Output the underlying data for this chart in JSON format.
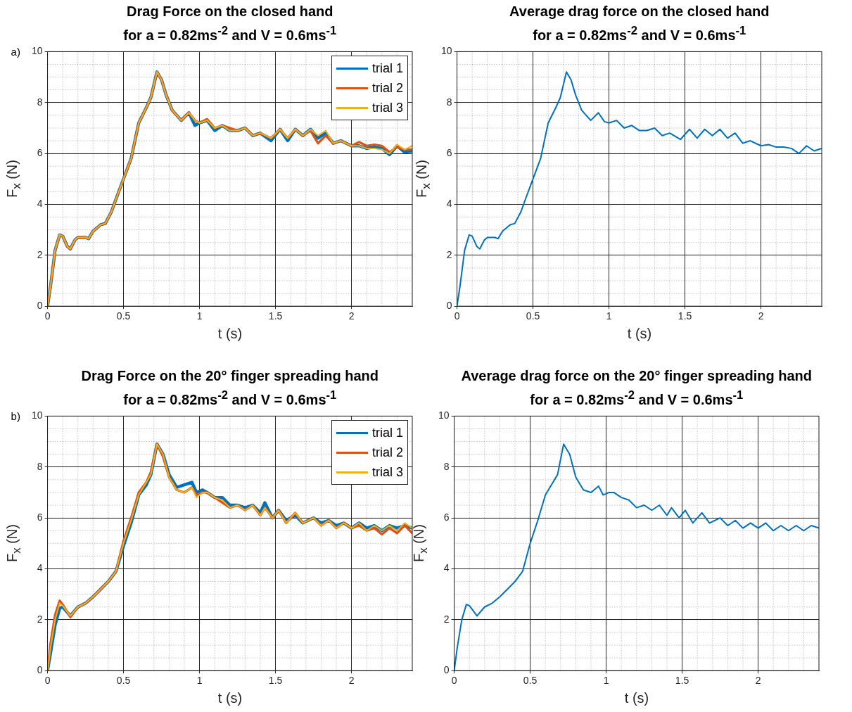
{
  "chart_data": [
    {
      "type": "line",
      "title": "Drag Force on the closed hand",
      "subtitle": "for a = 0.82ms$^{-2}$ and V = 0.6ms$^{-1}$",
      "xlabel": "t (s)",
      "ylabel": "F$_{x}$ (N)",
      "annotations": [
        "a)"
      ],
      "x": [
        0,
        0.02,
        0.05,
        0.08,
        0.1,
        0.13,
        0.15,
        0.18,
        0.2,
        0.25,
        0.27,
        0.3,
        0.35,
        0.38,
        0.42,
        0.45,
        0.5,
        0.55,
        0.6,
        0.65,
        0.68,
        0.72,
        0.75,
        0.78,
        0.82,
        0.85,
        0.88,
        0.93,
        0.97,
        1,
        1.05,
        1.1,
        1.15,
        1.2,
        1.25,
        1.3,
        1.35,
        1.4,
        1.47,
        1.53,
        1.58,
        1.63,
        1.68,
        1.73,
        1.78,
        1.83,
        1.88,
        1.93,
        2,
        2.05,
        2.1,
        2.15,
        2.2,
        2.25,
        2.3,
        2.35,
        2.4
      ],
      "series": [
        {
          "name": "trial 1",
          "color": "#0072bd",
          "values": [
            0,
            0.8,
            2.2,
            2.8,
            2.75,
            2.35,
            2.25,
            2.6,
            2.7,
            2.7,
            2.65,
            2.95,
            3.2,
            3.25,
            3.7,
            4.2,
            5.0,
            5.8,
            7.2,
            7.8,
            8.2,
            9.2,
            8.9,
            8.3,
            7.7,
            7.5,
            7.3,
            7.6,
            7.1,
            7.2,
            7.3,
            6.9,
            7.1,
            6.9,
            6.9,
            7.0,
            6.7,
            6.8,
            6.5,
            6.95,
            6.5,
            6.95,
            6.7,
            6.95,
            6.6,
            6.8,
            6.4,
            6.5,
            6.3,
            6.3,
            6.2,
            6.25,
            6.2,
            5.95,
            6.3,
            6.05,
            6.1
          ]
        },
        {
          "name": "trial 2",
          "color": "#d95319",
          "values": [
            0,
            0.8,
            2.2,
            2.8,
            2.75,
            2.35,
            2.25,
            2.6,
            2.7,
            2.7,
            2.65,
            2.95,
            3.2,
            3.25,
            3.7,
            4.2,
            5.0,
            5.8,
            7.2,
            7.8,
            8.2,
            9.2,
            8.9,
            8.3,
            7.7,
            7.5,
            7.3,
            7.6,
            7.3,
            7.2,
            7.35,
            7.0,
            7.1,
            7.0,
            6.9,
            7.0,
            6.7,
            6.8,
            6.6,
            6.95,
            6.6,
            6.95,
            6.7,
            6.9,
            6.4,
            6.7,
            6.4,
            6.5,
            6.3,
            6.45,
            6.3,
            6.35,
            6.3,
            6.05,
            6.25,
            6.15,
            6.15
          ]
        },
        {
          "name": "trial 3",
          "color": "#edb120",
          "values": [
            0,
            0.8,
            2.2,
            2.8,
            2.75,
            2.35,
            2.25,
            2.6,
            2.7,
            2.7,
            2.65,
            2.95,
            3.2,
            3.25,
            3.7,
            4.2,
            5.0,
            5.8,
            7.2,
            7.8,
            8.2,
            9.2,
            8.9,
            8.3,
            7.7,
            7.5,
            7.3,
            7.6,
            7.3,
            7.2,
            7.3,
            7.0,
            7.1,
            6.9,
            6.9,
            7.0,
            6.7,
            6.8,
            6.6,
            6.95,
            6.6,
            6.95,
            6.7,
            6.95,
            6.7,
            6.9,
            6.4,
            6.5,
            6.3,
            6.3,
            6.2,
            6.2,
            6.15,
            6.0,
            6.35,
            6.15,
            6.3
          ]
        }
      ],
      "xlim": [
        0,
        2.4
      ],
      "ylim": [
        0,
        10
      ],
      "xticks": [
        0,
        0.5,
        1,
        1.5,
        2
      ],
      "yticks": [
        0,
        2,
        4,
        6,
        8,
        10
      ],
      "grid": true,
      "legend": "top right",
      "marker": "none"
    },
    {
      "type": "line",
      "title": "Average drag force on the closed hand",
      "subtitle": "for a = 0.82ms$^{-2}$ and V = 0.6ms$^{-1}$",
      "xlabel": "t (s)",
      "ylabel": "F$_{x}$ (N)",
      "x": [
        0,
        0.02,
        0.05,
        0.08,
        0.1,
        0.13,
        0.15,
        0.18,
        0.2,
        0.25,
        0.27,
        0.3,
        0.35,
        0.38,
        0.42,
        0.45,
        0.5,
        0.55,
        0.6,
        0.65,
        0.68,
        0.72,
        0.75,
        0.78,
        0.82,
        0.85,
        0.88,
        0.93,
        0.97,
        1,
        1.05,
        1.1,
        1.15,
        1.2,
        1.25,
        1.3,
        1.35,
        1.4,
        1.47,
        1.53,
        1.58,
        1.63,
        1.68,
        1.73,
        1.78,
        1.83,
        1.88,
        1.93,
        2,
        2.05,
        2.1,
        2.15,
        2.2,
        2.25,
        2.3,
        2.35,
        2.4
      ],
      "series": [
        {
          "color": "#0072bd",
          "values": [
            0,
            0.8,
            2.2,
            2.8,
            2.75,
            2.35,
            2.25,
            2.6,
            2.7,
            2.7,
            2.65,
            2.95,
            3.2,
            3.25,
            3.7,
            4.2,
            5.0,
            5.8,
            7.2,
            7.8,
            8.2,
            9.2,
            8.9,
            8.3,
            7.7,
            7.5,
            7.3,
            7.6,
            7.25,
            7.2,
            7.3,
            7.0,
            7.1,
            6.9,
            6.9,
            7.0,
            6.7,
            6.8,
            6.55,
            6.95,
            6.6,
            6.95,
            6.7,
            6.95,
            6.6,
            6.8,
            6.4,
            6.5,
            6.3,
            6.35,
            6.25,
            6.25,
            6.2,
            6.0,
            6.3,
            6.1,
            6.2
          ]
        }
      ],
      "xlim": [
        0,
        2.4
      ],
      "ylim": [
        0,
        10
      ],
      "xticks": [
        0,
        0.5,
        1,
        1.5,
        2
      ],
      "yticks": [
        0,
        2,
        4,
        6,
        8,
        10
      ],
      "grid": true,
      "marker": "none"
    },
    {
      "type": "line",
      "title": "Drag Force on the 20° finger spreading hand",
      "subtitle": "for a = 0.82ms$^{-2}$ and V = 0.6ms$^{-1}$",
      "xlabel": "t (s)",
      "ylabel": "F$_{x}$ (N)",
      "annotations": [
        "b)"
      ],
      "x": [
        0,
        0.02,
        0.05,
        0.08,
        0.1,
        0.15,
        0.2,
        0.25,
        0.3,
        0.35,
        0.4,
        0.45,
        0.5,
        0.55,
        0.6,
        0.65,
        0.68,
        0.72,
        0.76,
        0.8,
        0.85,
        0.9,
        0.95,
        0.98,
        1.02,
        1.05,
        1.1,
        1.15,
        1.2,
        1.25,
        1.3,
        1.35,
        1.4,
        1.43,
        1.48,
        1.52,
        1.57,
        1.63,
        1.68,
        1.75,
        1.8,
        1.85,
        1.9,
        1.95,
        2,
        2.05,
        2.1,
        2.15,
        2.2,
        2.25,
        2.3,
        2.35,
        2.4
      ],
      "series": [
        {
          "name": "trial 1",
          "color": "#0072bd",
          "values": [
            0,
            0.7,
            1.8,
            2.45,
            2.5,
            2.15,
            2.5,
            2.65,
            2.9,
            3.2,
            3.5,
            3.9,
            4.9,
            5.8,
            6.9,
            7.3,
            7.7,
            8.9,
            8.5,
            7.7,
            7.2,
            7.3,
            7.4,
            7.0,
            7.1,
            7.0,
            6.8,
            6.8,
            6.5,
            6.5,
            6.4,
            6.5,
            6.2,
            6.6,
            6.0,
            6.3,
            5.9,
            6.1,
            5.8,
            6.0,
            5.8,
            5.9,
            5.7,
            5.8,
            5.6,
            5.8,
            5.6,
            5.7,
            5.5,
            5.7,
            5.6,
            5.7,
            5.6
          ]
        },
        {
          "name": "trial 2",
          "color": "#d95319",
          "values": [
            0,
            1.1,
            2.2,
            2.75,
            2.6,
            2.1,
            2.5,
            2.65,
            2.9,
            3.2,
            3.5,
            3.9,
            5.1,
            6.0,
            7.0,
            7.4,
            7.8,
            8.9,
            8.4,
            7.6,
            7.1,
            7.0,
            7.2,
            6.9,
            7.0,
            7.0,
            6.8,
            6.6,
            6.4,
            6.5,
            6.3,
            6.5,
            6.1,
            6.4,
            6.0,
            6.3,
            5.8,
            6.2,
            5.8,
            6.0,
            5.7,
            5.9,
            5.6,
            5.8,
            5.6,
            5.7,
            5.5,
            5.6,
            5.35,
            5.6,
            5.4,
            5.7,
            5.4
          ]
        },
        {
          "name": "trial 3",
          "color": "#edb120",
          "values": [
            0,
            0.9,
            2.0,
            2.65,
            2.55,
            2.15,
            2.5,
            2.65,
            2.9,
            3.2,
            3.5,
            3.9,
            5.0,
            5.9,
            6.9,
            7.4,
            7.7,
            8.9,
            8.5,
            7.6,
            7.1,
            7.0,
            7.2,
            6.8,
            7.0,
            7.0,
            6.8,
            6.7,
            6.4,
            6.5,
            6.3,
            6.5,
            6.1,
            6.4,
            6.0,
            6.3,
            5.8,
            6.2,
            5.8,
            6.0,
            5.7,
            5.9,
            5.6,
            5.8,
            5.6,
            5.8,
            5.5,
            5.7,
            5.5,
            5.7,
            5.5,
            5.8,
            5.6
          ]
        }
      ],
      "xlim": [
        0,
        2.4
      ],
      "ylim": [
        0,
        10
      ],
      "xticks": [
        0,
        0.5,
        1,
        1.5,
        2
      ],
      "yticks": [
        0,
        2,
        4,
        6,
        8,
        10
      ],
      "grid": true,
      "legend": "top right",
      "marker": "none"
    },
    {
      "type": "line",
      "title": "Average drag force on the 20° finger spreading hand",
      "subtitle": "for a = 0.82ms$^{-2}$ and V = 0.6ms$^{-1}$",
      "xlabel": "t (s)",
      "ylabel": "F$_{x}$ (N)",
      "x": [
        0,
        0.02,
        0.05,
        0.08,
        0.1,
        0.15,
        0.2,
        0.25,
        0.3,
        0.35,
        0.4,
        0.45,
        0.5,
        0.55,
        0.6,
        0.65,
        0.68,
        0.72,
        0.76,
        0.8,
        0.85,
        0.9,
        0.95,
        0.98,
        1.02,
        1.05,
        1.1,
        1.15,
        1.2,
        1.25,
        1.3,
        1.35,
        1.4,
        1.43,
        1.48,
        1.52,
        1.57,
        1.63,
        1.68,
        1.75,
        1.8,
        1.85,
        1.9,
        1.95,
        2,
        2.05,
        2.1,
        2.15,
        2.2,
        2.25,
        2.3,
        2.35,
        2.4
      ],
      "series": [
        {
          "color": "#0072bd",
          "values": [
            0,
            0.9,
            2.0,
            2.6,
            2.55,
            2.15,
            2.5,
            2.65,
            2.9,
            3.2,
            3.5,
            3.9,
            5.0,
            5.9,
            6.9,
            7.4,
            7.7,
            8.9,
            8.5,
            7.6,
            7.1,
            7.0,
            7.25,
            6.9,
            7.0,
            7.0,
            6.8,
            6.7,
            6.4,
            6.5,
            6.3,
            6.5,
            6.1,
            6.4,
            6.0,
            6.3,
            5.8,
            6.2,
            5.8,
            6.0,
            5.7,
            5.9,
            5.6,
            5.8,
            5.6,
            5.8,
            5.5,
            5.7,
            5.5,
            5.7,
            5.5,
            5.7,
            5.6
          ]
        }
      ],
      "xlim": [
        0,
        2.4
      ],
      "ylim": [
        0,
        10
      ],
      "xticks": [
        0,
        0.5,
        1,
        1.5,
        2
      ],
      "yticks": [
        0,
        2,
        4,
        6,
        8,
        10
      ],
      "grid": true,
      "marker": "none"
    }
  ]
}
